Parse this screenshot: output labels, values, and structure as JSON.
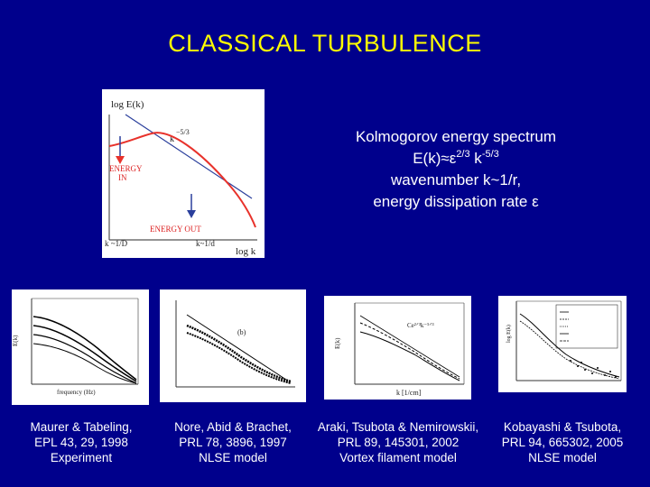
{
  "title": "CLASSICAL TURBULENCE",
  "spectrum_info": {
    "line1": "Kolmogorov energy spectrum",
    "line2_prefix": "E(k)≈ε",
    "line2_exp1": "2/3",
    "line2_mid": " k",
    "line2_exp2": "-5/3",
    "line3": "wavenumber k~1/r,",
    "line4": "energy dissipation rate ε"
  },
  "main_figure": {
    "ylabel": "log E(k)",
    "xlabel": "log k",
    "slope_k": "k",
    "slope_exp": "−5/3",
    "energy_in_1": "ENERGY",
    "energy_in_2": "IN",
    "energy_out": "ENERGY   OUT",
    "tick_left": "k ~1/D",
    "tick_right": "k~1/d"
  },
  "thumbnails": {
    "t1": {
      "ylabel": "E(k)",
      "xlabel": "frequency (Hz)"
    },
    "t2": {
      "label": "(b)"
    },
    "t3": {
      "ylabel": "E(k)",
      "xlabel": "k  [1/cm]",
      "annot": "Ce²ᐟ³k⁻⁵ᐟ³"
    },
    "t4": {
      "ylabel": "log E(k)"
    }
  },
  "captions": [
    {
      "line1": "Maurer & Tabeling,",
      "line2": "EPL 43, 29, 1998",
      "line3": "Experiment"
    },
    {
      "line1": "Nore, Abid & Brachet,",
      "line2": "PRL 78, 3896, 1997",
      "line3": "NLSE model"
    },
    {
      "line1": "Araki, Tsubota & Nemirowskii,",
      "line2": "PRL 89, 145301, 2002",
      "line3": "Vortex filament model"
    },
    {
      "line1": "Kobayashi & Tsubota,",
      "line2": "PRL 94, 665302, 2005",
      "line3": "NLSE model"
    }
  ],
  "colors": {
    "background": "#00008c",
    "title": "#ffff00",
    "text": "#ffffff",
    "curve": "#e8322b",
    "slope_line": "#2a3f9c"
  }
}
